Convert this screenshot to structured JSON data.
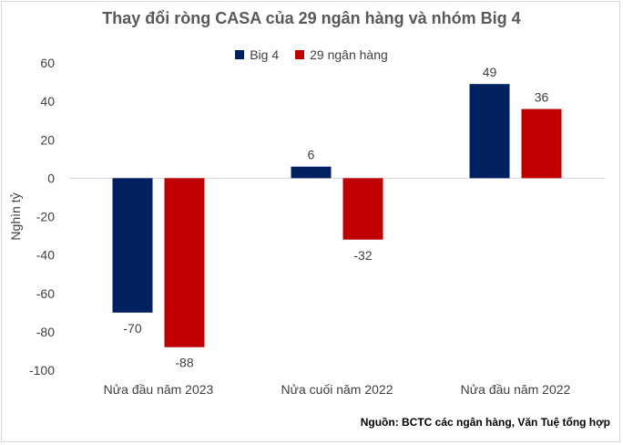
{
  "chart_data": {
    "type": "bar",
    "title": "Thay đổi ròng CASA của 29 ngân hàng và nhóm Big 4",
    "ylabel": "Nghìn tỷ",
    "xlabel": "",
    "categories": [
      "Nửa đầu năm 2023",
      "Nửa cuối năm 2022",
      "Nửa đầu năm 2022"
    ],
    "series": [
      {
        "name": "Big 4",
        "values": [
          -70,
          6,
          49
        ],
        "color": "#002060"
      },
      {
        "name": "29 ngân hàng",
        "values": [
          -88,
          -32,
          36
        ],
        "color": "#c00000"
      }
    ],
    "ylim": [
      -100,
      60
    ],
    "yticks": [
      60,
      40,
      20,
      0,
      -20,
      -40,
      -60,
      -80,
      -100
    ],
    "grid": false,
    "legend_position": "top"
  },
  "source": "Nguồn: BCTC các ngân hàng, Văn Tuệ tổng hợp"
}
